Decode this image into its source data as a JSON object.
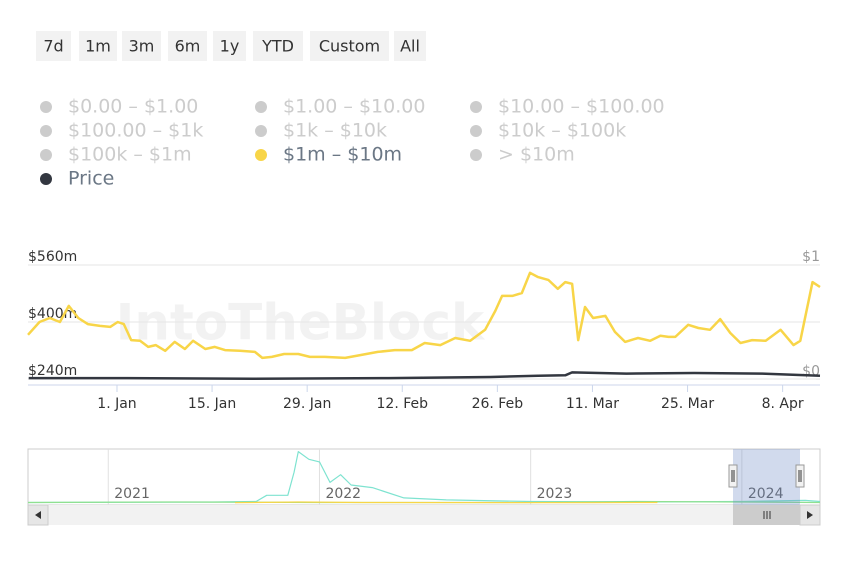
{
  "range_buttons": [
    "7d",
    "1m",
    "3m",
    "6m",
    "1y",
    "YTD",
    "Custom",
    "All"
  ],
  "watermark": "IntoTheBlock",
  "chart_data": [
    {
      "type": "line",
      "series": [
        {
          "name": "$0.00 – $1.00",
          "color": "#cccccc",
          "visible": false
        },
        {
          "name": "$1.00 – $10.00",
          "color": "#cccccc",
          "visible": false
        },
        {
          "name": "$10.00 – $100.00",
          "color": "#cccccc",
          "visible": false
        },
        {
          "name": "$100.00 – $1k",
          "color": "#cccccc",
          "visible": false
        },
        {
          "name": "$1k – $10k",
          "color": "#cccccc",
          "visible": false
        },
        {
          "name": "$10k – $100k",
          "color": "#cccccc",
          "visible": false
        },
        {
          "name": "$100k – $1m",
          "color": "#cccccc",
          "visible": false
        },
        {
          "name": "$1m – $10m",
          "color": "#f8d548",
          "visible": true,
          "x": [
            -13.1,
            -11.4,
            -9.9,
            -8.4,
            -7.1,
            -5.7,
            -4.3,
            -2.5,
            -1,
            0.1,
            1,
            2.1,
            3.4,
            4.6,
            5.7,
            7.1,
            8.5,
            10,
            11.2,
            13,
            14.4,
            15.9,
            18.1,
            20.3,
            21.4,
            22.8,
            24.6,
            26.7,
            28.4,
            30.6,
            33.6,
            35.8,
            38.4,
            40.9,
            43.4,
            45.3,
            47.6,
            49.8,
            52,
            54.2,
            55.7,
            56.7,
            58.2,
            59.6,
            60.8,
            62,
            63.5,
            64.9,
            66,
            67,
            67.9,
            68.9,
            70.1,
            71.9,
            73.3,
            74.8,
            76.7,
            78.5,
            80,
            81.2,
            82.2,
            84.1,
            85.6,
            87.3,
            88.8,
            90.3,
            91.8,
            93.5,
            95.5,
            97.7,
            99.6,
            100.6,
            102.4,
            103.5
          ],
          "values": [
            364,
            400,
            411,
            400,
            445,
            411,
            394,
            389,
            386,
            400,
            394,
            349,
            347,
            330,
            335,
            319,
            344,
            324,
            347,
            324,
            330,
            321,
            319,
            316,
            299,
            302,
            310,
            310,
            302,
            302,
            299,
            307,
            316,
            321,
            321,
            341,
            335,
            355,
            347,
            378,
            431,
            473,
            473,
            481,
            538,
            526,
            518,
            493,
            512,
            507,
            349,
            442,
            411,
            417,
            372,
            344,
            355,
            347,
            361,
            358,
            358,
            392,
            383,
            378,
            408,
            369,
            341,
            349,
            347,
            378,
            335,
            347,
            512,
            498
          ]
        },
        {
          "name": "> $10m",
          "color": "#cccccc",
          "visible": false
        },
        {
          "name": "Price",
          "color": "#333740",
          "visible": true,
          "axis": "y2",
          "x": [
            -13,
            0,
            20,
            40,
            55,
            62,
            66,
            67,
            75,
            85,
            95,
            103.5
          ],
          "values": [
            0.01,
            0.01,
            0.005,
            0.01,
            0.02,
            0.03,
            0.035,
            0.06,
            0.05,
            0.055,
            0.05,
            0.03
          ]
        }
      ],
      "xlim": [
        -13.1,
        103.5
      ],
      "xticks": [
        {
          "value": 0,
          "label": "1. Jan"
        },
        {
          "value": 14,
          "label": "15. Jan"
        },
        {
          "value": 28,
          "label": "29. Jan"
        },
        {
          "value": 42,
          "label": "12. Feb"
        },
        {
          "value": 56,
          "label": "26. Feb"
        },
        {
          "value": 70,
          "label": "11. Mar"
        },
        {
          "value": 84,
          "label": "25. Mar"
        },
        {
          "value": 98,
          "label": "8. Apr"
        }
      ],
      "ylim": [
        223,
        602
      ],
      "yticks": [
        {
          "value": 240,
          "label": "$240m"
        },
        {
          "value": 400,
          "label": "$400m"
        },
        {
          "value": 560,
          "label": "$560m"
        }
      ],
      "y2lim": [
        -0.05,
        1.13
      ],
      "y2ticks": [
        {
          "value": 0,
          "label": "$0"
        },
        {
          "value": 1,
          "label": "$1"
        }
      ],
      "grid": true
    },
    {
      "type": "line",
      "series": [
        {
          "color": "#7ee3d0",
          "x": [
            2020.62,
            2021.5,
            2021.7,
            2021.75,
            2021.85,
            2021.88,
            2021.9,
            2021.95,
            2022,
            2022.05,
            2022.1,
            2022.15,
            2022.25,
            2022.4,
            2022.6,
            2023,
            2023.5,
            2024,
            2024.3,
            2024.37
          ],
          "values": [
            0.01,
            0.02,
            0.03,
            0.15,
            0.15,
            0.6,
            1,
            0.85,
            0.8,
            0.4,
            0.55,
            0.35,
            0.3,
            0.1,
            0.06,
            0.03,
            0.02,
            0.03,
            0.05,
            0.03
          ]
        },
        {
          "color": "#90e090",
          "x": [
            2020.62,
            2021.3,
            2022,
            2023,
            2023.5,
            2024,
            2024.37
          ],
          "values": [
            0.01,
            0.02,
            0.01,
            0.01,
            0.03,
            0.02,
            0.01
          ]
        },
        {
          "color": "#f8d548",
          "x": [
            2021.6,
            2021.9,
            2022.2,
            2023.3,
            2023.6
          ],
          "values": [
            0.005,
            0.02,
            0.01,
            0.005,
            0.01
          ]
        }
      ],
      "xlim": [
        2020.62,
        2024.37
      ],
      "xticks": [
        2021,
        2022,
        2023,
        2024
      ],
      "ylim": [
        0,
        1.05
      ],
      "grid": true
    }
  ]
}
